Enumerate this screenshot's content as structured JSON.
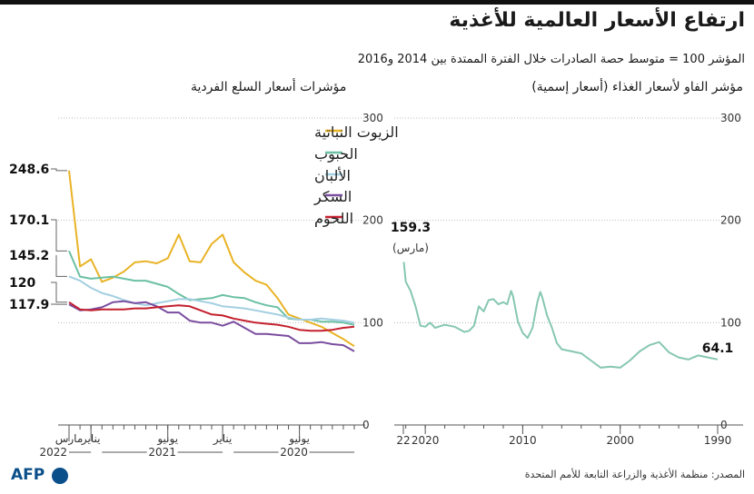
{
  "header": {
    "title": "ارتفاع الأسعار العالمية للأغذية",
    "subtitle": "المؤشر 100 = متوسط حصة الصادرات خلال الفترة الممتدة بين 2014 و2016"
  },
  "footer": {
    "source": "المصدر: منظمة الأغذية والزراعة التابعة للأمم المتحدة",
    "logo": "AFP"
  },
  "colors": {
    "oils": "#e9b326",
    "cereals": "#6cc0a4",
    "dairy": "#a3cfe2",
    "sugar": "#7a4d9f",
    "meat": "#c4202e",
    "fao": "#86c7b2",
    "axis": "#555555",
    "grid": "#bbbbbb"
  },
  "chart_data": [
    {
      "type": "line",
      "title": "مؤشرات أسعار السلع الفردية",
      "ylim": [
        0,
        300
      ],
      "yticks": [
        0,
        100,
        200,
        300
      ],
      "x": [
        "2020-01",
        "2020-02",
        "2020-03",
        "2020-04",
        "2020-05",
        "2020-06",
        "2020-07",
        "2020-08",
        "2020-09",
        "2020-10",
        "2020-11",
        "2020-12",
        "2021-01",
        "2021-02",
        "2021-03",
        "2021-04",
        "2021-05",
        "2021-06",
        "2021-07",
        "2021-08",
        "2021-09",
        "2021-10",
        "2021-11",
        "2021-12",
        "2022-01",
        "2022-02",
        "2022-03"
      ],
      "x_tick_labels": [
        {
          "x": "2020-06",
          "label": "يونيو"
        },
        {
          "x": "2021-01",
          "label": "يناير"
        },
        {
          "x": "2021-06",
          "label": "يونيو"
        },
        {
          "x": "2022-01",
          "label": "يناير"
        },
        {
          "x": "2022-03",
          "label": "مارس"
        }
      ],
      "year_labels": [
        {
          "year": "2020",
          "from": "2020-01",
          "to": "2020-12"
        },
        {
          "year": "2021",
          "from": "2021-01",
          "to": "2021-12"
        },
        {
          "year": "2022",
          "from": "2022-01",
          "to": "2022-03"
        }
      ],
      "series": [
        {
          "name": "الزيوت النباتية",
          "color": "#e9b326",
          "values": [
            77,
            84,
            90,
            96,
            100,
            104,
            108,
            124,
            137,
            141,
            149,
            159,
            186,
            177,
            159,
            160,
            186,
            163,
            158,
            160,
            159,
            150,
            144,
            140,
            162,
            155,
            248.6
          ]
        },
        {
          "name": "الحبوب",
          "color": "#6cc0a4",
          "values": [
            98,
            100,
            101,
            101,
            103,
            103,
            104,
            115,
            117,
            120,
            124,
            125,
            127,
            124,
            123,
            122,
            128,
            135,
            138,
            141,
            141,
            143,
            145,
            144,
            143,
            145,
            170.1
          ]
        },
        {
          "name": "الألبان",
          "color": "#a3cfe2",
          "values": [
            100,
            102,
            103,
            104,
            103,
            103,
            105,
            108,
            110,
            112,
            114,
            115,
            116,
            119,
            121,
            123,
            123,
            121,
            119,
            117,
            119,
            122,
            126,
            129,
            134,
            141,
            145.2
          ]
        },
        {
          "name": "السكر",
          "color": "#7a4d9f",
          "values": [
            72,
            78,
            79,
            81,
            80,
            80,
            87,
            88,
            89,
            89,
            95,
            101,
            97,
            100,
            100,
            102,
            110,
            110,
            116,
            120,
            119,
            121,
            120,
            115,
            113,
            112,
            117.9
          ]
        },
        {
          "name": "اللحوم",
          "color": "#c4202e",
          "values": [
            96,
            95,
            93,
            92,
            92,
            93,
            96,
            98,
            99,
            100,
            102,
            104,
            107,
            108,
            112,
            116,
            117,
            116,
            115,
            114,
            114,
            113,
            113,
            113,
            112,
            113,
            120
          ]
        }
      ],
      "end_labels": [
        "248.6",
        "170.1",
        "145.2",
        "120",
        "117.9"
      ]
    },
    {
      "type": "line",
      "title": "مؤشر الفاو لأسعار الغذاء (أسعار إسمية)",
      "ylim": [
        0,
        300
      ],
      "yticks": [
        0,
        100,
        200,
        300
      ],
      "x_range": [
        1990,
        2022.25
      ],
      "x_tick_labels": [
        "1990",
        "2000",
        "2010",
        "2020",
        "22"
      ],
      "x": [
        1990,
        1991,
        1992,
        1993,
        1994,
        1995,
        1996,
        1997,
        1998,
        1999,
        2000,
        2001,
        2002,
        2003,
        2004,
        2005,
        2006,
        2006.5,
        2007,
        2007.5,
        2008,
        2008.2,
        2008.5,
        2009,
        2009.5,
        2010,
        2010.5,
        2011,
        2011.2,
        2011.6,
        2012,
        2012.5,
        2013,
        2013.5,
        2014,
        2014.5,
        2015,
        2015.5,
        2016,
        2017,
        2018,
        2019,
        2019.5,
        2020,
        2020.5,
        2021,
        2021.5,
        2022,
        2022.2
      ],
      "values": [
        64.1,
        66,
        68,
        64,
        66,
        71,
        81,
        78,
        72,
        63,
        56,
        57,
        56,
        63,
        70,
        72,
        74,
        80,
        95,
        107,
        125,
        130,
        120,
        95,
        85,
        90,
        101,
        126,
        131,
        118,
        120,
        118,
        123,
        122,
        111,
        116,
        97,
        92,
        91,
        96,
        98,
        95,
        100,
        96,
        97,
        116,
        131,
        140,
        159.3
      ],
      "series_labels": [
        {
          "value": "159.3",
          "note": "(مارس)"
        },
        {
          "value": "64.1"
        }
      ]
    }
  ]
}
